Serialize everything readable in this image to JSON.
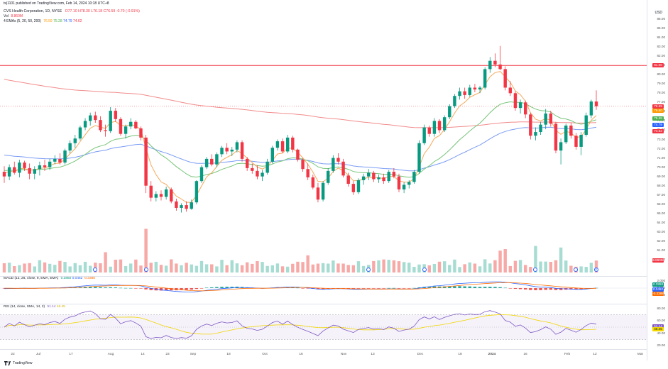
{
  "header": {
    "publisher": "ts|1101 published on TradingView.com, Feb 14, 2024 10:18 UTC+8",
    "symbol": "CVS Health Corporation, 1D, NYSE",
    "ohlc": "O77.10 H78.30 L76.18 C76.59 -0.70 (-0.91%)",
    "vol_label": "Vol",
    "vol_value": "8.860M",
    "ema_label": "4 EMAs (5, 20, 50, 200)",
    "ema5": "76.59",
    "ema20": "75.28",
    "ema50": "74.79",
    "ema200": "74.62"
  },
  "currency": "USD",
  "price_axis": [
    "86.00",
    "85.00",
    "84.00",
    "83.00",
    "82.00",
    "81.00",
    "80.00",
    "79.00",
    "78.00",
    "77.00",
    "76.00",
    "75.00",
    "74.00",
    "73.00",
    "72.00",
    "71.00",
    "70.00",
    "69.00",
    "68.00",
    "67.00",
    "66.00",
    "65.00",
    "64.00",
    "63.00",
    "62.00",
    "61.00",
    "60.00"
  ],
  "price_tags": [
    {
      "label": "81.00",
      "color": "#f23645"
    },
    {
      "label": "76.59",
      "color": "#f23645"
    },
    {
      "label": "76.50",
      "color": "#ff9800"
    },
    {
      "label": "75.28",
      "color": "#4caf50"
    },
    {
      "label": "74.79",
      "color": "#2962ff"
    },
    {
      "label": "74.62",
      "color": "#f23645"
    },
    {
      "label": "8.860M",
      "color": "#f23645"
    }
  ],
  "macd": {
    "label": "MACD (12, 26, close, 9, EMA, EMA)",
    "v1": "0.3850",
    "v2": "0.0462",
    "v3": "-0.3388",
    "axis": [
      "2.000",
      "0.000",
      "-2.000"
    ],
    "tags": [
      {
        "label": "0.3850",
        "color": "#089981"
      },
      {
        "label": "0.0462",
        "color": "#2962ff"
      },
      {
        "label": "-0.3388",
        "color": "#ff6d00"
      }
    ]
  },
  "rsi": {
    "label": "RSI (14, close, SMA, 14, 2)",
    "v1": "51.14",
    "v2": "46.45",
    "axis": [
      "80.00",
      "60.00",
      "40.00",
      "20.00"
    ],
    "tags": [
      {
        "label": "51.14",
        "color": "#7e57c2"
      },
      {
        "label": "46.45",
        "color": "#f2d600"
      }
    ]
  },
  "x_axis": [
    "22",
    "Jul",
    "17",
    "Aug",
    "14",
    "23",
    "Sep",
    "18",
    "Oct",
    "16",
    "Nov",
    "13",
    "Dec",
    "18",
    "2024",
    "16",
    "Feb",
    "12",
    "Mar"
  ],
  "footer": {
    "brand": "TradingView"
  },
  "colors": {
    "up": "#089981",
    "down": "#f23645",
    "ema5": "#ff9800",
    "ema20": "#4caf50",
    "ema50": "#2962ff",
    "ema200": "#f23645"
  },
  "chart_data": {
    "type": "candlestick",
    "ylim": [
      60,
      86
    ],
    "resistance_line": 81,
    "last_close": 76.59,
    "candles": [
      [
        69.5,
        70.1,
        68.3,
        69.0
      ],
      [
        69.0,
        70.3,
        68.6,
        70.0
      ],
      [
        70.0,
        70.6,
        69.2,
        69.4
      ],
      [
        69.4,
        70.8,
        68.9,
        70.5
      ],
      [
        70.5,
        70.7,
        69.6,
        69.9
      ],
      [
        69.9,
        70.4,
        68.7,
        69.3
      ],
      [
        69.3,
        70.1,
        68.7,
        69.8
      ],
      [
        69.8,
        70.6,
        69.1,
        70.2
      ],
      [
        70.2,
        70.8,
        69.6,
        70.0
      ],
      [
        70.0,
        70.9,
        69.7,
        70.6
      ],
      [
        70.6,
        71.3,
        70.3,
        70.9
      ],
      [
        70.9,
        71.5,
        70.3,
        70.5
      ],
      [
        70.5,
        72.0,
        70.3,
        71.8
      ],
      [
        71.8,
        72.9,
        71.5,
        72.6
      ],
      [
        72.6,
        73.5,
        72.1,
        73.1
      ],
      [
        73.1,
        74.5,
        72.9,
        74.3
      ],
      [
        74.3,
        75.3,
        74.0,
        75.0
      ],
      [
        75.0,
        75.9,
        74.5,
        75.6
      ],
      [
        75.6,
        76.0,
        74.8,
        75.1
      ],
      [
        75.1,
        75.5,
        73.8,
        74.0
      ],
      [
        74.0,
        74.6,
        73.3,
        73.9
      ],
      [
        73.9,
        76.5,
        73.7,
        76.1
      ],
      [
        76.1,
        76.4,
        74.9,
        75.2
      ],
      [
        75.2,
        75.4,
        73.4,
        73.6
      ],
      [
        73.6,
        74.6,
        73.1,
        74.4
      ],
      [
        74.4,
        75.3,
        74.1,
        74.9
      ],
      [
        74.9,
        75.1,
        74.1,
        74.2
      ],
      [
        74.2,
        74.4,
        72.9,
        73.2
      ],
      [
        73.2,
        73.5,
        67.2,
        68.0
      ],
      [
        68.0,
        68.5,
        66.3,
        66.7
      ],
      [
        66.7,
        67.4,
        66.3,
        67.1
      ],
      [
        67.1,
        67.5,
        66.4,
        66.8
      ],
      [
        66.8,
        67.9,
        66.5,
        67.6
      ],
      [
        67.6,
        67.8,
        66.1,
        66.3
      ],
      [
        66.3,
        66.6,
        65.3,
        65.6
      ],
      [
        65.6,
        66.1,
        65.1,
        65.9
      ],
      [
        65.9,
        66.3,
        65.2,
        65.5
      ],
      [
        65.5,
        66.5,
        65.4,
        66.2
      ],
      [
        66.2,
        68.6,
        66.0,
        68.5
      ],
      [
        68.5,
        70.2,
        68.3,
        70.0
      ],
      [
        70.0,
        71.1,
        69.8,
        70.9
      ],
      [
        70.9,
        71.4,
        70.1,
        70.3
      ],
      [
        70.3,
        71.6,
        70.0,
        71.4
      ],
      [
        71.4,
        72.3,
        71.1,
        72.1
      ],
      [
        72.1,
        72.6,
        71.4,
        71.7
      ],
      [
        71.7,
        72.2,
        71.2,
        71.9
      ],
      [
        71.9,
        72.9,
        71.6,
        72.7
      ],
      [
        72.7,
        72.9,
        70.6,
        70.9
      ],
      [
        70.9,
        71.1,
        69.6,
        69.9
      ],
      [
        69.9,
        70.4,
        69.3,
        69.6
      ],
      [
        69.6,
        70.2,
        68.7,
        69.0
      ],
      [
        69.0,
        69.7,
        68.5,
        69.4
      ],
      [
        69.4,
        70.9,
        69.2,
        70.6
      ],
      [
        70.6,
        72.3,
        70.4,
        72.1
      ],
      [
        72.1,
        73.0,
        71.8,
        72.8
      ],
      [
        72.8,
        73.1,
        71.5,
        71.7
      ],
      [
        71.7,
        73.5,
        71.5,
        73.2
      ],
      [
        73.2,
        73.4,
        71.6,
        71.9
      ],
      [
        71.9,
        72.0,
        70.6,
        70.8
      ],
      [
        70.8,
        71.0,
        69.5,
        69.8
      ],
      [
        69.8,
        70.4,
        68.6,
        68.9
      ],
      [
        68.9,
        69.2,
        67.6,
        67.8
      ],
      [
        67.8,
        68.3,
        66.2,
        66.5
      ],
      [
        66.5,
        68.5,
        66.3,
        68.3
      ],
      [
        68.3,
        69.9,
        68.1,
        69.6
      ],
      [
        69.6,
        71.3,
        69.4,
        71.0
      ],
      [
        71.0,
        71.5,
        70.3,
        70.6
      ],
      [
        70.6,
        70.9,
        68.9,
        69.1
      ],
      [
        69.1,
        69.4,
        67.9,
        68.2
      ],
      [
        68.2,
        68.5,
        67.0,
        67.3
      ],
      [
        67.3,
        68.8,
        67.1,
        68.6
      ],
      [
        68.6,
        69.3,
        68.1,
        69.0
      ],
      [
        69.0,
        69.8,
        68.6,
        69.4
      ],
      [
        69.4,
        69.6,
        68.4,
        68.7
      ],
      [
        68.7,
        69.2,
        68.3,
        68.9
      ],
      [
        68.9,
        69.3,
        68.2,
        68.5
      ],
      [
        68.5,
        69.7,
        68.3,
        69.5
      ],
      [
        69.5,
        69.9,
        68.8,
        69.0
      ],
      [
        69.0,
        69.3,
        67.3,
        67.6
      ],
      [
        67.6,
        68.4,
        67.2,
        68.1
      ],
      [
        68.1,
        68.6,
        67.7,
        68.4
      ],
      [
        68.4,
        69.7,
        68.2,
        69.5
      ],
      [
        69.5,
        72.9,
        69.3,
        72.6
      ],
      [
        72.6,
        74.6,
        72.4,
        74.3
      ],
      [
        74.3,
        74.5,
        73.3,
        73.6
      ],
      [
        73.6,
        75.3,
        73.3,
        75.0
      ],
      [
        75.0,
        75.2,
        73.7,
        74.0
      ],
      [
        74.0,
        75.6,
        73.8,
        75.4
      ],
      [
        75.4,
        76.8,
        75.2,
        76.6
      ],
      [
        76.6,
        77.9,
        76.4,
        77.7
      ],
      [
        77.7,
        78.6,
        77.3,
        78.2
      ],
      [
        78.2,
        78.6,
        77.4,
        77.8
      ],
      [
        77.8,
        78.9,
        77.6,
        78.6
      ],
      [
        78.6,
        79.0,
        78.1,
        78.4
      ],
      [
        78.4,
        78.8,
        78.0,
        78.6
      ],
      [
        78.6,
        80.8,
        78.4,
        80.6
      ],
      [
        80.6,
        81.9,
        80.2,
        81.5
      ],
      [
        81.5,
        82.3,
        80.8,
        81.1
      ],
      [
        81.1,
        83.1,
        80.5,
        80.6
      ],
      [
        80.6,
        80.9,
        78.3,
        78.6
      ],
      [
        78.6,
        79.3,
        77.7,
        78.0
      ],
      [
        78.0,
        78.2,
        76.1,
        76.4
      ],
      [
        76.4,
        77.3,
        75.8,
        77.0
      ],
      [
        77.0,
        77.2,
        75.3,
        75.7
      ],
      [
        75.7,
        75.9,
        73.0,
        73.4
      ],
      [
        73.4,
        74.3,
        72.9,
        73.8
      ],
      [
        73.8,
        74.9,
        73.5,
        74.6
      ],
      [
        74.6,
        76.3,
        74.1,
        75.8
      ],
      [
        75.8,
        76.1,
        74.4,
        74.7
      ],
      [
        74.7,
        74.9,
        71.5,
        71.8
      ],
      [
        71.8,
        73.1,
        70.3,
        72.7
      ],
      [
        72.7,
        74.7,
        72.5,
        74.5
      ],
      [
        74.5,
        74.8,
        73.1,
        73.4
      ],
      [
        73.4,
        73.7,
        71.9,
        72.2
      ],
      [
        72.2,
        73.8,
        71.3,
        73.5
      ],
      [
        73.5,
        75.9,
        73.3,
        75.6
      ],
      [
        75.6,
        77.3,
        75.3,
        77.1
      ],
      [
        77.1,
        78.3,
        76.2,
        76.59
      ]
    ]
  }
}
